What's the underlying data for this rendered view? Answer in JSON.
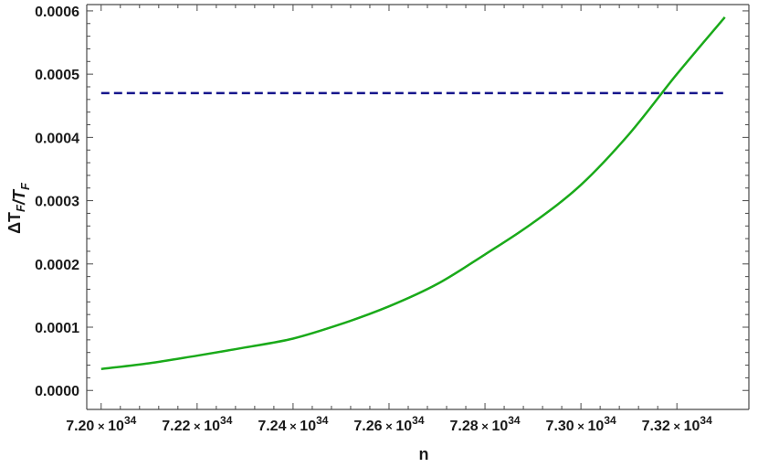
{
  "chart_data": {
    "type": "line",
    "xlabel": "n",
    "ylabel": "ΔT_F/T_F",
    "xlim": [
      7.197e+34,
      7.335e+34
    ],
    "ylim": [
      -3e-05,
      0.00061
    ],
    "x_ticks": [
      {
        "value": 7.2e+34,
        "mantissa": "7.20",
        "base": "10",
        "exponent": "34"
      },
      {
        "value": 7.22e+34,
        "mantissa": "7.22",
        "base": "10",
        "exponent": "34"
      },
      {
        "value": 7.24e+34,
        "mantissa": "7.24",
        "base": "10",
        "exponent": "34"
      },
      {
        "value": 7.26e+34,
        "mantissa": "7.26",
        "base": "10",
        "exponent": "34"
      },
      {
        "value": 7.28e+34,
        "mantissa": "7.28",
        "base": "10",
        "exponent": "34"
      },
      {
        "value": 7.3e+34,
        "mantissa": "7.30",
        "base": "10",
        "exponent": "34"
      },
      {
        "value": 7.32e+34,
        "mantissa": "7.32",
        "base": "10",
        "exponent": "34"
      }
    ],
    "y_ticks": [
      {
        "value": 0.0,
        "label": "0.0000"
      },
      {
        "value": 0.0001,
        "label": "0.0001"
      },
      {
        "value": 0.0002,
        "label": "0.0002"
      },
      {
        "value": 0.0003,
        "label": "0.0003"
      },
      {
        "value": 0.0004,
        "label": "0.0004"
      },
      {
        "value": 0.0005,
        "label": "0.0005"
      },
      {
        "value": 0.0006,
        "label": "0.0006"
      }
    ],
    "series": [
      {
        "color": "#1aaa1a",
        "style": "solid",
        "x": [
          7.2e+34,
          7.21e+34,
          7.22e+34,
          7.23e+34,
          7.24e+34,
          7.25e+34,
          7.26e+34,
          7.27e+34,
          7.28e+34,
          7.29e+34,
          7.3e+34,
          7.31e+34,
          7.32e+34,
          7.33e+34
        ],
        "y": [
          3.4e-05,
          4.3e-05,
          5.5e-05,
          6.8e-05,
          8.2e-05,
          0.000105,
          0.000133,
          0.000168,
          0.000215,
          0.000265,
          0.000325,
          0.000405,
          0.0005,
          0.00059
        ]
      },
      {
        "color": "#16168c",
        "style": "dashed",
        "x": [
          7.2e+34,
          7.33e+34
        ],
        "y": [
          0.00047,
          0.00047
        ]
      }
    ],
    "grid": false,
    "frame": true
  }
}
